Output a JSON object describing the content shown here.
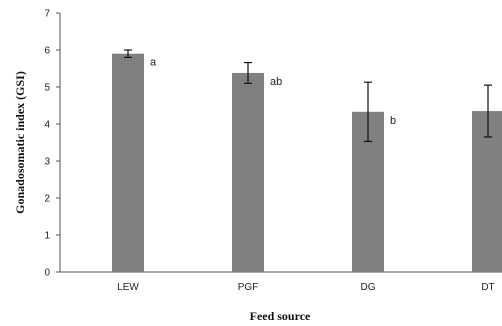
{
  "chart_data": {
    "type": "bar",
    "xlabel": "Feed source",
    "ylabel": "Gonadosomatic index (GSI)",
    "categories": [
      "LEW",
      "PGF",
      "DG",
      "DT"
    ],
    "values": [
      5.9,
      5.38,
      4.33,
      4.35
    ],
    "errors": [
      0.1,
      0.28,
      0.8,
      0.7
    ],
    "significance_letters": [
      "a",
      "ab",
      "b",
      ""
    ],
    "ylim": [
      0,
      7
    ],
    "yticks": [
      "0",
      "1",
      "2",
      "3",
      "4",
      "5",
      "6",
      "7"
    ],
    "grid": false,
    "bar_color": "#808080"
  }
}
